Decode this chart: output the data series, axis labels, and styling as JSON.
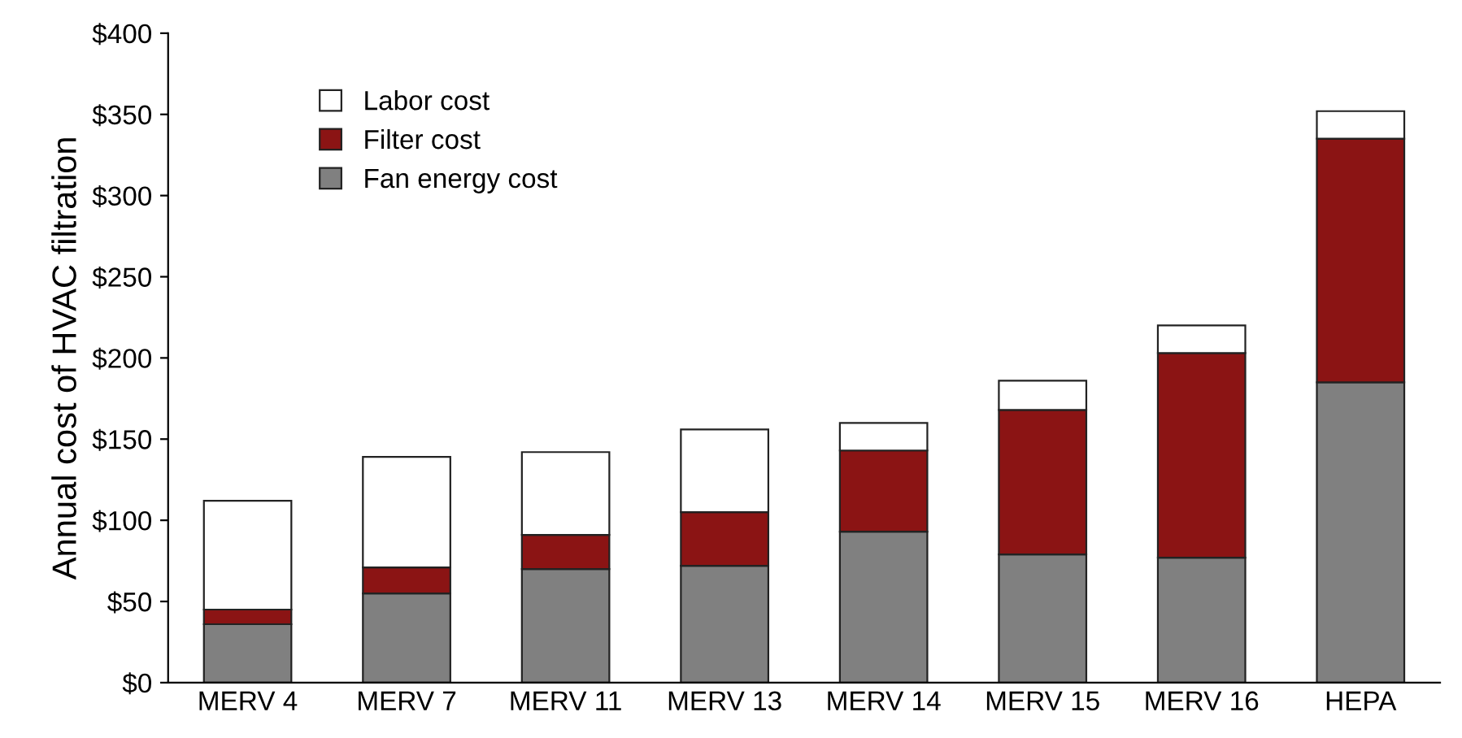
{
  "chart_data": {
    "type": "bar",
    "stacked": true,
    "ylabel": "Annual cost of HVAC filtration",
    "categories": [
      "MERV 4",
      "MERV 7",
      "MERV 11",
      "MERV 13",
      "MERV 14",
      "MERV 15",
      "MERV 16",
      "HEPA"
    ],
    "series": [
      {
        "name": "Fan energy cost",
        "color": "#808080",
        "values": [
          36,
          55,
          70,
          72,
          93,
          79,
          77,
          185
        ]
      },
      {
        "name": "Filter cost",
        "color": "#8b1414",
        "values": [
          9,
          16,
          21,
          33,
          50,
          89,
          126,
          150
        ]
      },
      {
        "name": "Labor cost",
        "color": "#ffffff",
        "values": [
          67,
          68,
          51,
          51,
          17,
          18,
          17,
          17
        ]
      }
    ],
    "ylim": [
      0,
      400
    ],
    "yticks": [
      {
        "value": 0,
        "label": "$0"
      },
      {
        "value": 50,
        "label": "$50"
      },
      {
        "value": 100,
        "label": "$100"
      },
      {
        "value": 150,
        "label": "$150"
      },
      {
        "value": 200,
        "label": "$200"
      },
      {
        "value": 250,
        "label": "$250"
      },
      {
        "value": 300,
        "label": "$300"
      },
      {
        "value": 350,
        "label": "$350"
      },
      {
        "value": 400,
        "label": "$400"
      }
    ],
    "grid": false,
    "legend": "top left"
  }
}
